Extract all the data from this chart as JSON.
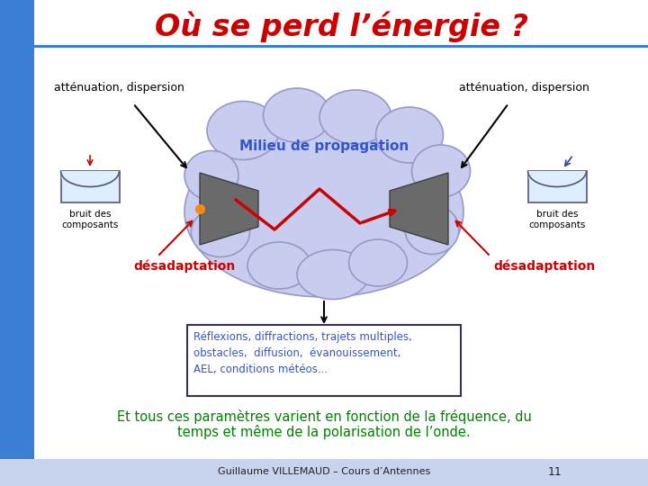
{
  "title": "Où se perd l’énergie ?",
  "title_color": "#cc0000",
  "title_fontsize": 24,
  "bg_color": "#ffffff",
  "left_bar_color": "#3a7fd5",
  "cloud_color": "#c8ccee",
  "cloud_edge_color": "#9898c8",
  "text_attenuation": "atténuation, dispersion",
  "text_bruit": "bruit des\ncomposants",
  "text_desadaptation": "désadaptation",
  "text_milieu": "Milieu de propagation",
  "text_reflexions": "Réflexions, diffractions, trajets multiples,\nobstacles,  diffusion,  évanouissement,\nAEL, conditions météos...",
  "text_bottom_1": "Et tous ces paramètres varient en fonction de la fréquence, du",
  "text_bottom_2": "temps et même de la polarisation de l’onde.",
  "text_footer": "Guillaume VILLEMAUD – Cours d’Antennes",
  "text_page": "11",
  "green_color": "#008000",
  "red_color": "#cc0000",
  "black_color": "#000000",
  "blue_text_color": "#3355cc",
  "gray_antenna": "#6a6a6a",
  "footer_color": "#c8d4ee"
}
